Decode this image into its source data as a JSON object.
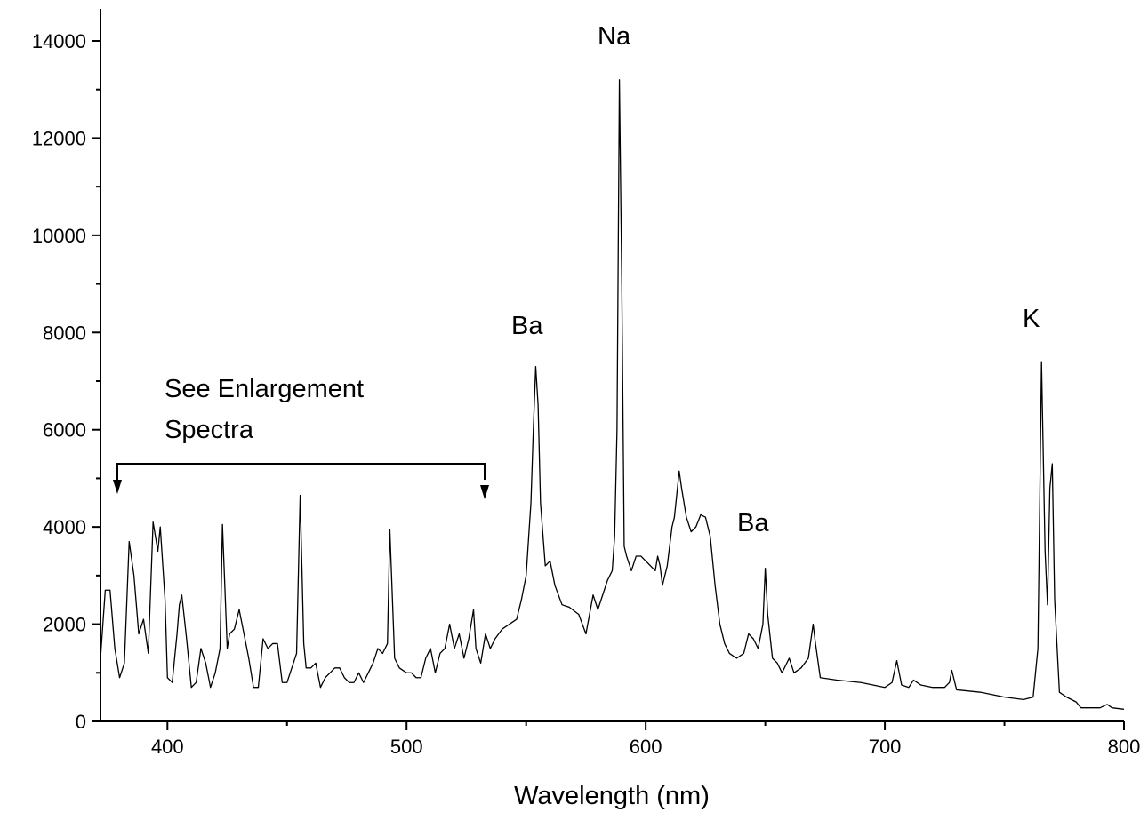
{
  "chart_data": {
    "type": "line",
    "x_label": "Wavelength (nm)",
    "annotations": [
      "Na",
      "Ba",
      "Ba",
      "K",
      "See Enlargement Spectra"
    ],
    "color": "#000000",
    "xlim": [
      372,
      800
    ],
    "xticks": [
      400,
      500,
      600,
      700,
      800
    ],
    "xticks_minor": [
      450,
      550,
      650,
      750
    ],
    "ylim": [
      0,
      14000
    ],
    "yticks": [
      0,
      2000,
      4000,
      6000,
      8000,
      10000,
      12000,
      14000
    ],
    "yticks_minor": [
      1000,
      3000,
      5000,
      7000,
      9000,
      11000,
      13000
    ],
    "x": [
      372,
      374,
      376,
      378,
      380,
      382,
      384,
      386,
      388,
      390,
      392,
      394,
      396,
      397,
      399,
      400,
      402,
      404,
      405,
      406,
      408,
      410,
      412,
      414,
      416,
      418,
      420,
      422,
      423,
      425,
      426,
      428,
      430,
      432,
      434,
      436,
      438,
      440,
      442,
      444,
      446,
      448,
      450,
      452,
      454,
      455.5,
      457,
      458,
      460,
      462,
      464,
      466,
      468,
      470,
      472,
      474,
      476,
      478,
      480,
      482,
      484,
      486,
      488,
      490,
      492,
      493,
      495,
      497,
      500,
      502,
      504,
      506,
      508,
      510,
      512,
      514,
      516,
      518,
      520,
      522,
      524,
      526,
      528,
      529,
      531,
      533,
      535,
      537,
      540,
      543,
      546,
      548,
      550,
      552,
      553,
      554,
      555,
      556,
      558,
      560,
      562,
      565,
      568,
      572,
      575,
      578,
      580,
      582,
      584,
      586,
      587,
      588,
      589,
      590,
      591,
      592,
      594,
      596,
      598,
      600,
      602,
      604,
      605,
      606,
      607,
      609,
      611,
      612,
      614,
      615,
      617,
      619,
      621,
      623,
      625,
      627,
      629,
      631,
      633,
      635,
      638,
      641,
      643,
      645,
      647,
      649,
      650,
      651,
      653,
      655,
      657,
      660,
      662,
      665,
      668,
      670,
      671,
      673,
      680,
      690,
      700,
      703,
      705,
      707,
      710,
      712,
      715,
      720,
      725,
      727,
      728,
      730,
      740,
      750,
      758,
      762,
      764,
      765.5,
      767,
      768,
      769,
      770,
      771,
      773,
      776,
      780,
      782,
      790,
      793,
      795,
      800
    ],
    "values": [
      1300,
      2700,
      2700,
      1500,
      900,
      1200,
      3700,
      3000,
      1800,
      2100,
      1400,
      4100,
      3500,
      4000,
      2500,
      900,
      800,
      1800,
      2400,
      2600,
      1700,
      700,
      800,
      1500,
      1200,
      700,
      1000,
      1500,
      4050,
      1500,
      1800,
      1900,
      2300,
      1800,
      1300,
      700,
      700,
      1700,
      1500,
      1600,
      1600,
      800,
      800,
      1100,
      1400,
      4650,
      1600,
      1100,
      1100,
      1200,
      700,
      900,
      1000,
      1100,
      1100,
      900,
      800,
      800,
      1000,
      800,
      1000,
      1200,
      1500,
      1400,
      1600,
      3950,
      1300,
      1100,
      1000,
      1000,
      900,
      900,
      1300,
      1500,
      1000,
      1400,
      1500,
      2000,
      1500,
      1800,
      1300,
      1700,
      2300,
      1500,
      1200,
      1800,
      1500,
      1700,
      1900,
      2000,
      2100,
      2500,
      3000,
      4500,
      6000,
      7300,
      6500,
      4500,
      3200,
      3300,
      2800,
      2400,
      2350,
      2200,
      1800,
      2600,
      2300,
      2600,
      2900,
      3100,
      3800,
      6000,
      13200,
      9000,
      3600,
      3400,
      3100,
      3400,
      3400,
      3300,
      3200,
      3100,
      3400,
      3200,
      2800,
      3200,
      4000,
      4200,
      5150,
      4800,
      4200,
      3900,
      4000,
      4250,
      4200,
      3800,
      2800,
      2000,
      1600,
      1400,
      1300,
      1400,
      1800,
      1700,
      1500,
      2000,
      3150,
      2200,
      1300,
      1200,
      1000,
      1300,
      1000,
      1100,
      1300,
      2000,
      1600,
      900,
      850,
      800,
      700,
      800,
      1250,
      750,
      700,
      850,
      750,
      700,
      700,
      800,
      1050,
      650,
      600,
      500,
      450,
      500,
      1500,
      7400,
      3500,
      2400,
      4800,
      5300,
      2500,
      600,
      500,
      400,
      280,
      280,
      350,
      280,
      250
    ]
  }
}
